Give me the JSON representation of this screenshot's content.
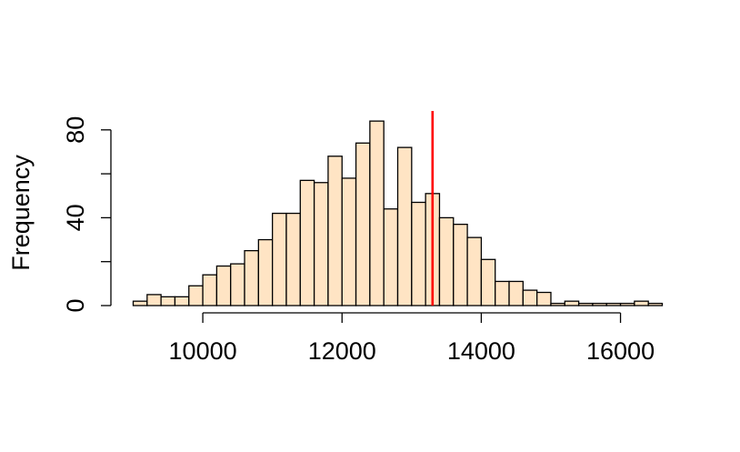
{
  "chart_data": {
    "type": "bar",
    "subtype": "histogram",
    "title": "",
    "xlabel": "",
    "ylabel": "Frequency",
    "bin_width": 200,
    "bins_start": 9000,
    "values": [
      2,
      5,
      4,
      4,
      9,
      14,
      18,
      19,
      25,
      30,
      42,
      42,
      57,
      56,
      68,
      58,
      74,
      84,
      44,
      72,
      47,
      51,
      40,
      37,
      31,
      21,
      11,
      11,
      7,
      6,
      1,
      2,
      1,
      1,
      1,
      1,
      2,
      1
    ],
    "xlim": [
      9000,
      16600
    ],
    "ylim": [
      0,
      80
    ],
    "x_ticks": [
      10000,
      12000,
      14000,
      16000
    ],
    "y_ticks": [
      0,
      40,
      80
    ],
    "vline": {
      "x": 13300,
      "color": "#ff0000"
    },
    "bar_fill": "#ffe4c4",
    "bar_stroke": "#000000",
    "grid": false,
    "legend": "none"
  }
}
